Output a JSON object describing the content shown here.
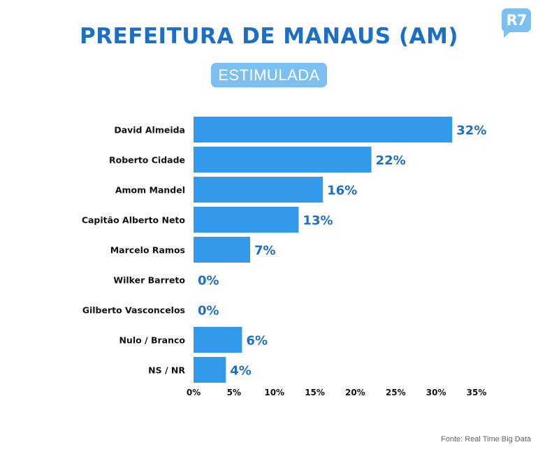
{
  "header": {
    "logo_text": "R7",
    "title": "PREFEITURA DE MANAUS (AM)",
    "badge": "ESTIMULADA"
  },
  "footer": {
    "source": "Fonte: Real Time Big Data"
  },
  "colors": {
    "bar": "#3399ea",
    "value_label": "#1d6fc4",
    "category_label": "#111111",
    "title": "#1d6fc4",
    "badge": "#7cc0f2"
  },
  "chart_data": {
    "type": "bar",
    "orientation": "horizontal",
    "title": "PREFEITURA DE MANAUS (AM)",
    "subtitle": "ESTIMULADA",
    "categories": [
      "David Almeida",
      "Roberto Cidade",
      "Amom Mandel",
      "Capitão Alberto Neto",
      "Marcelo Ramos",
      "Wilker Barreto",
      "Gilberto Vasconcelos",
      "Nulo / Branco",
      "NS / NR"
    ],
    "values": [
      32,
      22,
      16,
      13,
      7,
      0,
      0,
      6,
      4
    ],
    "value_labels": [
      "32%",
      "22%",
      "16%",
      "13%",
      "7%",
      "0%",
      "0%",
      "6%",
      "4%"
    ],
    "xlim": [
      0,
      35
    ],
    "x_ticks": [
      0,
      5,
      10,
      15,
      20,
      25,
      30,
      35
    ],
    "x_tick_labels": [
      "0%",
      "5%",
      "10%",
      "15%",
      "20%",
      "25%",
      "30%",
      "35%"
    ],
    "xlabel": "",
    "ylabel": "",
    "grid": false,
    "legend": "none"
  }
}
